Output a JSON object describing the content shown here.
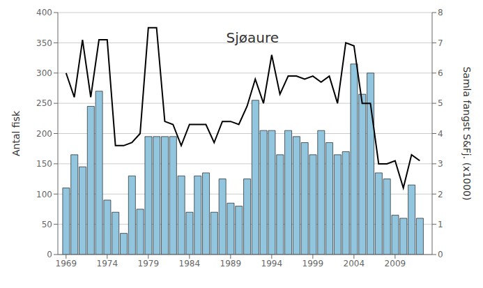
{
  "chart_data": {
    "type": "bar",
    "title": "Sjøaure",
    "ylabel": "Antal fisk",
    "y2label": "Samla fangst S&Fj. (x1000)",
    "x": [
      1969,
      1970,
      1971,
      1972,
      1973,
      1974,
      1975,
      1976,
      1977,
      1978,
      1979,
      1980,
      1981,
      1982,
      1983,
      1984,
      1985,
      1986,
      1987,
      1988,
      1989,
      1990,
      1991,
      1992,
      1993,
      1994,
      1995,
      1996,
      1997,
      1998,
      1999,
      2000,
      2001,
      2002,
      2003,
      2004,
      2005,
      2006,
      2007,
      2008,
      2009,
      2010,
      2011,
      2012
    ],
    "series": [
      {
        "type": "bar",
        "color": "#92C5DE",
        "values": [
          110,
          165,
          145,
          245,
          270,
          90,
          70,
          35,
          130,
          75,
          195,
          195,
          195,
          195,
          130,
          70,
          130,
          135,
          70,
          125,
          85,
          80,
          125,
          255,
          205,
          205,
          165,
          205,
          195,
          185,
          165,
          205,
          185,
          165,
          170,
          315,
          265,
          300,
          135,
          125,
          65,
          60,
          115,
          60
        ]
      },
      {
        "type": "line",
        "color": "#000000",
        "axis": "y2",
        "values": [
          6.0,
          5.2,
          7.1,
          5.2,
          7.1,
          7.1,
          3.6,
          3.6,
          3.7,
          4.0,
          7.5,
          7.5,
          4.4,
          4.3,
          3.6,
          4.3,
          4.3,
          4.3,
          3.7,
          4.4,
          4.4,
          4.3,
          4.9,
          5.8,
          5.0,
          6.6,
          5.3,
          5.9,
          5.9,
          5.8,
          5.9,
          5.7,
          5.9,
          5.0,
          7.0,
          6.9,
          5.0,
          5.0,
          3.0,
          3.0,
          3.1,
          2.2,
          3.3,
          3.1
        ]
      }
    ],
    "xlim": [
      1968.0,
      2013.5
    ],
    "xticks": [
      1969,
      1974,
      1979,
      1984,
      1989,
      1994,
      1999,
      2004,
      2009
    ],
    "ylim": [
      0,
      400
    ],
    "yticks": [
      0,
      50,
      100,
      150,
      200,
      250,
      300,
      350,
      400
    ],
    "y2lim": [
      0,
      8
    ],
    "y2ticks": [
      0,
      1,
      2,
      3,
      4,
      5,
      6,
      7,
      8
    ],
    "grid": true
  }
}
